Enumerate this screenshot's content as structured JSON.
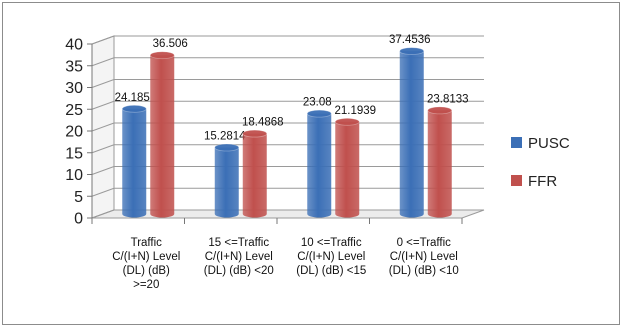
{
  "chart_data": {
    "type": "bar",
    "title": "",
    "xlabel": "",
    "ylabel": "",
    "ylim": [
      0,
      40
    ],
    "yticks": [
      "0",
      "5",
      "10",
      "15",
      "20",
      "25",
      "30",
      "35",
      "40"
    ],
    "categories": [
      [
        "Traffic",
        "C/(I+N) Level",
        "(DL) (dB)",
        ">=20"
      ],
      [
        "15 <=Traffic",
        "C/(I+N) Level",
        "(DL) (dB) <20"
      ],
      [
        "10 <=Traffic",
        "C/(I+N) Level",
        "(DL) (dB) <15"
      ],
      [
        "0 <=Traffic",
        "C/(I+N) Level",
        "(DL) (dB) <10"
      ]
    ],
    "series": [
      {
        "name": "PUSC",
        "color": "#3b6fb6",
        "values": [
          24.185,
          15.2814,
          23.08,
          37.4536
        ],
        "labels": [
          "24.185",
          "15.2814",
          "23.08",
          "37.4536"
        ]
      },
      {
        "name": "FFR",
        "color": "#c0504d",
        "values": [
          36.506,
          18.4868,
          21.1939,
          23.8133
        ],
        "labels": [
          "36.506",
          "18.4868",
          "21.1939",
          "23.8133"
        ]
      }
    ],
    "grid": true,
    "three_d": true,
    "legend_position": "right"
  }
}
